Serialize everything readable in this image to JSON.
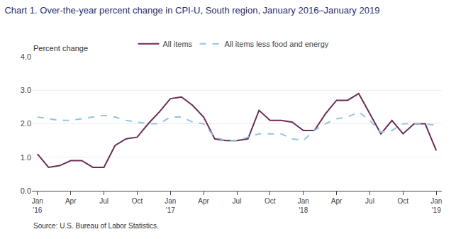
{
  "chart_data": {
    "type": "line",
    "title": "Chart 1. Over-the-year percent change in CPI-U, South region, January 2016–January 2019",
    "ylabel": "Percent change",
    "annotations": [
      "Source: U.S. Bureau of Labor Statistics."
    ],
    "categories": [
      "Jan\n'16",
      null,
      null,
      "Apr",
      null,
      null,
      "Jul",
      null,
      null,
      "Oct",
      null,
      null,
      "Jan\n'17",
      null,
      null,
      "Apr",
      null,
      null,
      "Jul",
      null,
      null,
      "Oct",
      null,
      null,
      "Jan\n'18",
      null,
      null,
      "Apr",
      null,
      null,
      "Jul",
      null,
      null,
      "Oct",
      null,
      null,
      "Jan\n'19"
    ],
    "series": [
      {
        "name": "All items",
        "color": "#6B2D56",
        "line_style": "solid",
        "values": [
          1.1,
          0.7,
          0.75,
          0.9,
          0.9,
          0.7,
          0.7,
          1.35,
          1.55,
          1.6,
          2.0,
          2.35,
          2.75,
          2.8,
          2.55,
          2.2,
          1.55,
          1.5,
          1.5,
          1.55,
          2.4,
          2.1,
          2.1,
          2.05,
          1.8,
          1.8,
          2.3,
          2.7,
          2.7,
          2.9,
          2.3,
          1.7,
          2.1,
          1.7,
          2.0,
          2.0,
          1.2
        ]
      },
      {
        "name": "All items less food and energy",
        "color": "#93C6E0",
        "line_style": "dashed",
        "values": [
          2.2,
          2.15,
          2.1,
          2.1,
          2.15,
          2.2,
          2.25,
          2.2,
          2.1,
          2.05,
          2.0,
          2.0,
          2.2,
          2.2,
          2.05,
          2.0,
          1.6,
          1.5,
          1.5,
          1.6,
          1.7,
          1.7,
          1.7,
          1.55,
          1.5,
          1.8,
          2.0,
          2.15,
          2.2,
          2.35,
          2.1,
          1.75,
          1.8,
          2.0,
          2.0,
          2.0,
          1.95
        ]
      }
    ],
    "ylim": [
      0.0,
      4.0
    ],
    "yticks": [
      {
        "value": 0.0,
        "label": "0.0"
      },
      {
        "value": 1.0,
        "label": "1.0"
      },
      {
        "value": 2.0,
        "label": "2.0"
      },
      {
        "value": 3.0,
        "label": "3.0"
      },
      {
        "value": 4.0,
        "label": "4.0"
      }
    ],
    "grid": true,
    "legend": "top"
  }
}
